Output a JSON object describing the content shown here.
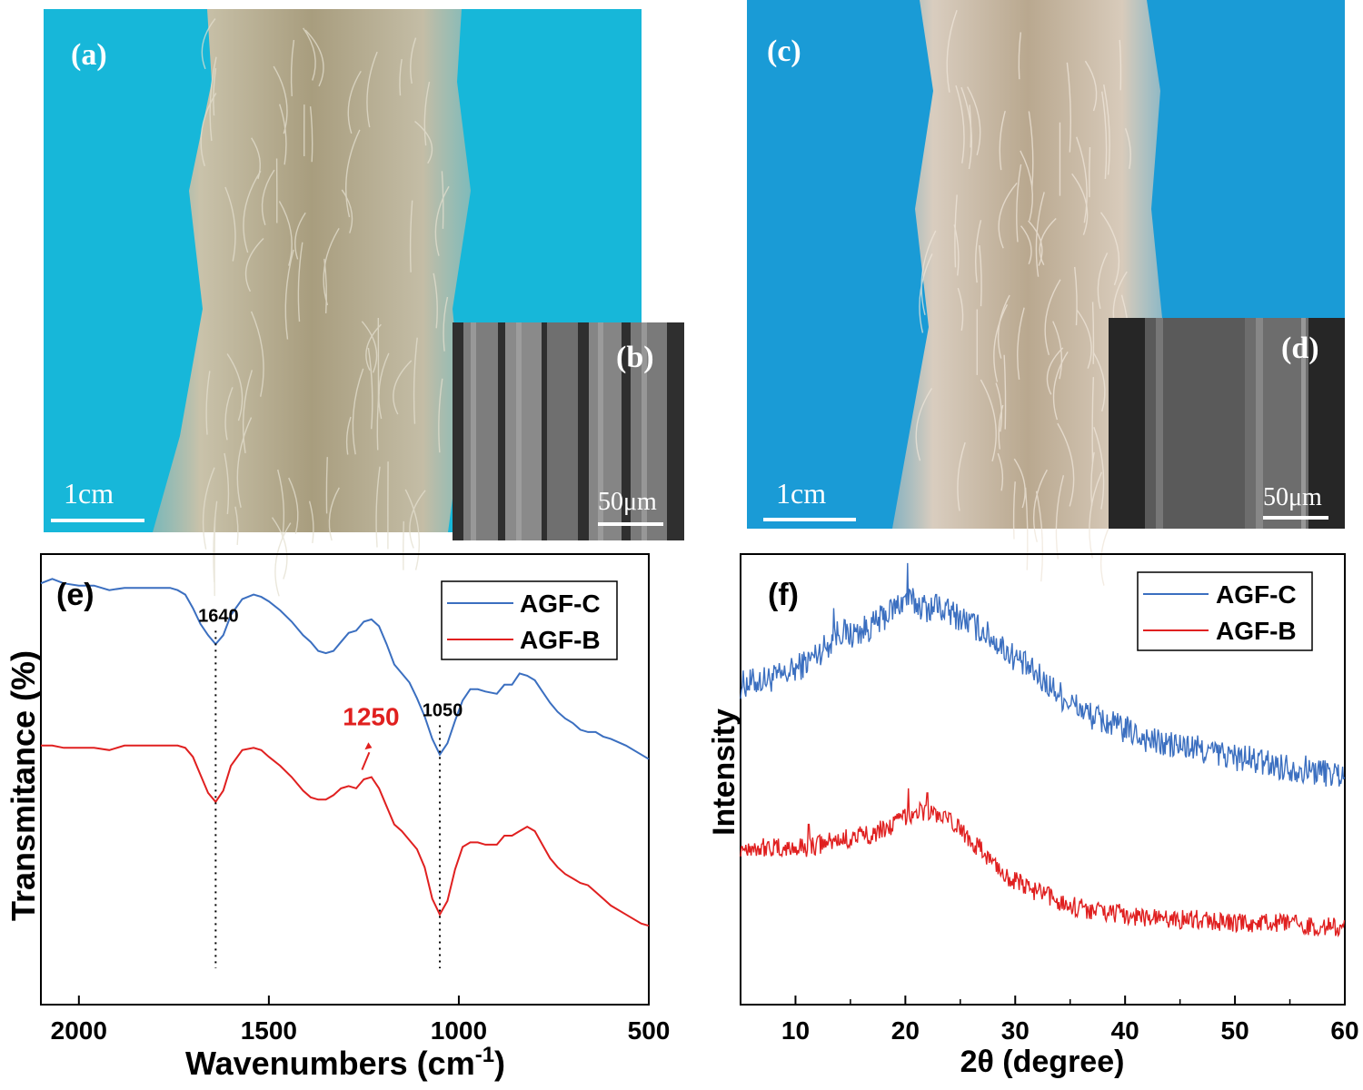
{
  "panels": {
    "a": {
      "label": "(a)",
      "scale": "1cm"
    },
    "b": {
      "label": "(b)",
      "scale": "50μm"
    },
    "c": {
      "label": "(c)",
      "scale": "1cm"
    },
    "d": {
      "label": "(d)",
      "scale": "50μm"
    },
    "e": {
      "label": "(e)"
    },
    "f": {
      "label": "(f)"
    }
  },
  "colors": {
    "agf_c": "#3b6fc0",
    "agf_b": "#e02020",
    "annotation_red": "#e0201f",
    "photo_a_bg": "#17b7d9",
    "photo_c_bg": "#1a9bd6"
  },
  "chart_data": [
    {
      "id": "e",
      "type": "line",
      "title": "",
      "xlabel": "Wavenumbers (cm",
      "xlabel_sup": "-1",
      "xlabel_close": ")",
      "ylabel": "Transmitance (%)",
      "xlim": [
        2100,
        500
      ],
      "ylim": [
        0,
        100
      ],
      "xticks": [
        2000,
        1500,
        1000,
        500
      ],
      "xtick_labels": [
        "2000",
        "1500",
        "1000",
        "500"
      ],
      "legend": {
        "placement": "top-right",
        "entries": [
          "AGF-C",
          "AGF-B"
        ]
      },
      "annotations": [
        {
          "text": "1640",
          "x": 1640
        },
        {
          "text": "1050",
          "x": 1050
        },
        {
          "text": "1250",
          "x": 1250
        }
      ],
      "series": [
        {
          "name": "AGF-C",
          "x": [
            2100,
            2070,
            2040,
            2000,
            1960,
            1920,
            1880,
            1840,
            1800,
            1760,
            1740,
            1720,
            1700,
            1680,
            1660,
            1640,
            1620,
            1600,
            1570,
            1540,
            1520,
            1500,
            1470,
            1440,
            1410,
            1390,
            1370,
            1350,
            1330,
            1310,
            1290,
            1270,
            1250,
            1230,
            1210,
            1190,
            1170,
            1150,
            1130,
            1110,
            1090,
            1070,
            1050,
            1030,
            1010,
            990,
            970,
            950,
            930,
            900,
            880,
            860,
            840,
            820,
            800,
            780,
            760,
            740,
            720,
            700,
            680,
            660,
            640,
            620,
            600,
            560,
            520,
            500
          ],
          "y": [
            93.5,
            94.5,
            93.5,
            93.0,
            93.0,
            92.0,
            92.5,
            92.5,
            92.5,
            92.5,
            92.0,
            91.0,
            88.0,
            84.5,
            82.0,
            80.0,
            82.0,
            86.5,
            90.0,
            91.0,
            90.5,
            89.5,
            87.5,
            85.0,
            82.0,
            80.5,
            78.5,
            78.0,
            78.5,
            80.5,
            82.5,
            83.0,
            85.0,
            85.5,
            84.0,
            80.0,
            75.5,
            73.5,
            71.5,
            68.0,
            64.0,
            59.0,
            55.5,
            58.0,
            63.0,
            67.5,
            70.0,
            70.0,
            69.5,
            69.0,
            71.0,
            71.0,
            73.5,
            73.0,
            72.0,
            69.5,
            67.0,
            65.0,
            63.5,
            62.5,
            61.0,
            60.5,
            60.5,
            59.5,
            59.0,
            57.5,
            55.5,
            54.5
          ]
        },
        {
          "name": "AGF-B",
          "x": [
            2100,
            2070,
            2040,
            2000,
            1960,
            1920,
            1880,
            1840,
            1800,
            1760,
            1740,
            1720,
            1700,
            1680,
            1660,
            1640,
            1620,
            1600,
            1570,
            1540,
            1520,
            1500,
            1470,
            1440,
            1410,
            1390,
            1370,
            1350,
            1330,
            1310,
            1290,
            1270,
            1250,
            1230,
            1210,
            1190,
            1170,
            1150,
            1130,
            1110,
            1090,
            1070,
            1050,
            1030,
            1010,
            990,
            970,
            950,
            930,
            900,
            880,
            860,
            840,
            820,
            800,
            780,
            760,
            740,
            720,
            700,
            680,
            660,
            640,
            620,
            600,
            560,
            520,
            500
          ],
          "y": [
            57.5,
            57.5,
            57.0,
            57.0,
            57.0,
            56.5,
            57.5,
            57.5,
            57.5,
            57.5,
            57.5,
            57.0,
            55.0,
            51.0,
            47.0,
            45.0,
            47.5,
            53.0,
            56.5,
            57.0,
            56.5,
            55.0,
            53.0,
            50.5,
            47.5,
            46.0,
            45.5,
            45.5,
            46.5,
            48.0,
            48.5,
            48.0,
            50.0,
            50.5,
            48.0,
            44.0,
            40.0,
            38.5,
            36.5,
            34.5,
            30.5,
            23.5,
            20.0,
            23.0,
            30.0,
            35.0,
            36.0,
            36.0,
            35.5,
            35.5,
            37.5,
            37.5,
            38.5,
            39.5,
            38.5,
            35.5,
            32.5,
            30.5,
            29.0,
            28.0,
            27.0,
            26.5,
            25.0,
            23.5,
            22.0,
            20.0,
            18.0,
            17.5
          ]
        }
      ]
    },
    {
      "id": "f",
      "type": "line",
      "title": "",
      "xlabel": "2θ (degree)",
      "ylabel": "Intensity",
      "xlim": [
        5,
        60
      ],
      "ylim": [
        0,
        100
      ],
      "xticks": [
        10,
        20,
        30,
        40,
        50,
        60
      ],
      "xtick_labels": [
        "10",
        "20",
        "30",
        "40",
        "50",
        "60"
      ],
      "legend": {
        "placement": "top-right",
        "entries": [
          "AGF-C",
          "AGF-B"
        ]
      },
      "series": [
        {
          "name": "AGF-C",
          "x": [
            5,
            7,
            9,
            11,
            13,
            14,
            15,
            17,
            18,
            19,
            20,
            21,
            22,
            23,
            25,
            27,
            29,
            31,
            33,
            35,
            37,
            40,
            43,
            46,
            50,
            54,
            57,
            60
          ],
          "y": [
            71,
            72,
            73,
            76,
            80,
            83,
            82,
            84,
            86,
            88,
            90,
            89,
            88,
            88,
            86,
            83,
            79,
            75,
            71,
            67,
            64,
            61,
            58,
            57,
            55,
            53,
            52,
            51
          ],
          "noise": 3.2,
          "spikes": [
            [
              20.2,
              98
            ],
            [
              13.5,
              88
            ],
            [
              22.8,
              91
            ]
          ]
        },
        {
          "name": "AGF-B",
          "x": [
            5,
            7,
            9,
            11,
            13,
            15,
            17,
            19,
            20,
            21,
            22,
            23,
            25,
            27,
            29,
            31,
            33,
            35,
            37,
            40,
            43,
            46,
            50,
            54,
            57,
            60
          ],
          "y": [
            35,
            35,
            34.5,
            35,
            36,
            37,
            38,
            40,
            42,
            43,
            43,
            42,
            39,
            34,
            29,
            26,
            24,
            22,
            21,
            20,
            19,
            19,
            18,
            18,
            17.5,
            17
          ],
          "noise": 2.2,
          "spikes": [
            [
              20.3,
              48
            ],
            [
              22.0,
              47
            ],
            [
              11.2,
              40
            ]
          ]
        }
      ]
    }
  ]
}
